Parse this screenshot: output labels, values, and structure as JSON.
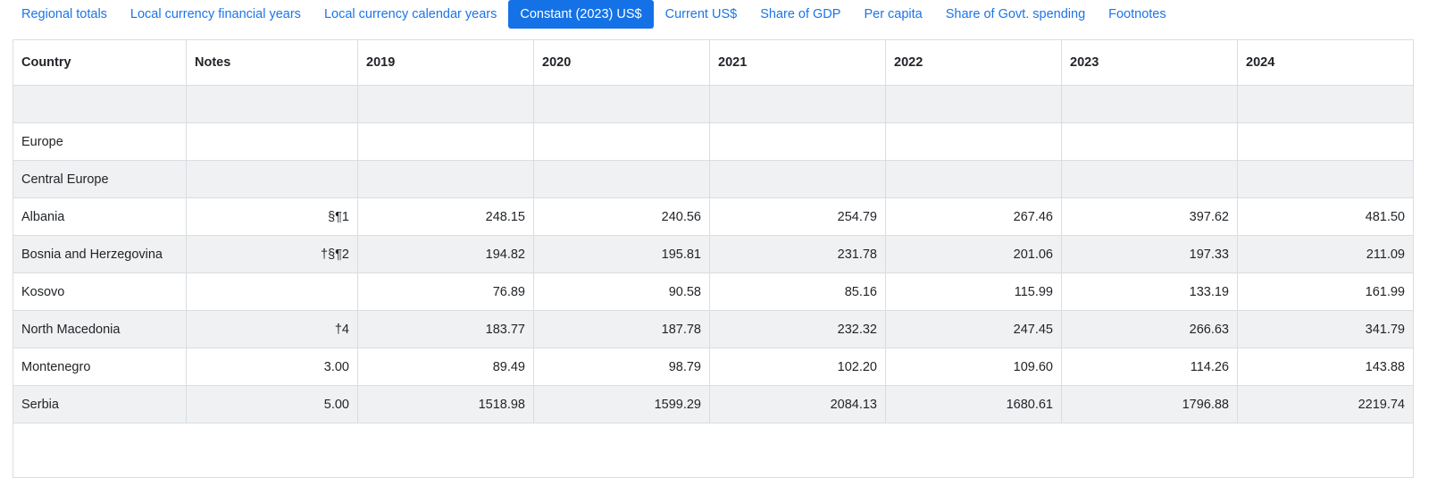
{
  "tab_bar": {
    "tabs": [
      {
        "label": "Regional totals",
        "active": false
      },
      {
        "label": "Local currency financial years",
        "active": false
      },
      {
        "label": "Local currency calendar years",
        "active": false
      },
      {
        "label": "Constant (2023) US$",
        "active": true
      },
      {
        "label": "Current US$",
        "active": false
      },
      {
        "label": "Share of GDP",
        "active": false
      },
      {
        "label": "Per capita",
        "active": false
      },
      {
        "label": "Share of Govt. spending",
        "active": false
      },
      {
        "label": "Footnotes",
        "active": false
      }
    ]
  },
  "table": {
    "columns": [
      "Country",
      "Notes",
      "2019",
      "2020",
      "2021",
      "2022",
      "2023",
      "2024"
    ],
    "rows": [
      {
        "kind": "spacer",
        "country": "",
        "notes": "",
        "values": [
          "",
          "",
          "",
          "",
          "",
          ""
        ]
      },
      {
        "kind": "region",
        "country": "Europe",
        "notes": "",
        "values": [
          "",
          "",
          "",
          "",
          "",
          ""
        ]
      },
      {
        "kind": "subregion",
        "country": "Central Europe",
        "notes": "",
        "values": [
          "",
          "",
          "",
          "",
          "",
          ""
        ]
      },
      {
        "kind": "country",
        "country": "Albania",
        "notes": "§¶1",
        "values": [
          "248.15",
          "240.56",
          "254.79",
          "267.46",
          "397.62",
          "481.50"
        ]
      },
      {
        "kind": "country",
        "country": "Bosnia and Herzegovina",
        "notes": "†§¶2",
        "values": [
          "194.82",
          "195.81",
          "231.78",
          "201.06",
          "197.33",
          "211.09"
        ]
      },
      {
        "kind": "country",
        "country": "Kosovo",
        "notes": "",
        "values": [
          "76.89",
          "90.58",
          "85.16",
          "115.99",
          "133.19",
          "161.99"
        ]
      },
      {
        "kind": "country",
        "country": "North Macedonia",
        "notes": "†4",
        "values": [
          "183.77",
          "187.78",
          "232.32",
          "247.45",
          "266.63",
          "341.79"
        ]
      },
      {
        "kind": "country",
        "country": "Montenegro",
        "notes": "3.00",
        "values": [
          "89.49",
          "98.79",
          "102.20",
          "109.60",
          "114.26",
          "143.88"
        ]
      },
      {
        "kind": "country",
        "country": "Serbia",
        "notes": "5.00",
        "values": [
          "1518.98",
          "1599.29",
          "2084.13",
          "1680.61",
          "1796.88",
          "2219.74"
        ]
      },
      {
        "kind": "partial",
        "country": "",
        "notes": "",
        "values": []
      }
    ]
  },
  "colors": {
    "active_tab_bg": "#1472e6",
    "tab_text": "#1b75e8",
    "active_tab_text": "#ffffff",
    "row_stripe": "#f0f1f2",
    "border": "#d9dde2",
    "text": "#212529"
  }
}
